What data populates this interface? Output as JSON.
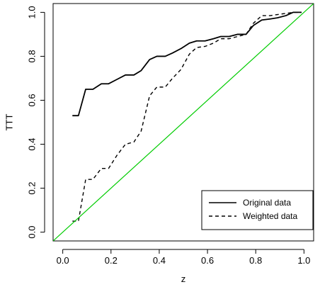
{
  "chart_data": {
    "type": "line",
    "xlabel": "z",
    "ylabel": "TTT",
    "xlim": [
      -0.04,
      1.04
    ],
    "ylim": [
      -0.04,
      1.04
    ],
    "x_ticks": [
      0.0,
      0.2,
      0.4,
      0.6,
      0.8,
      1.0
    ],
    "x_tick_labels": [
      "0.0",
      "0.2",
      "0.4",
      "0.6",
      "0.8",
      "1.0"
    ],
    "y_ticks": [
      0.0,
      0.2,
      0.4,
      0.6,
      0.8,
      1.0
    ],
    "y_tick_labels": [
      "0.0",
      "0.2",
      "0.4",
      "0.6",
      "0.8",
      "1.0"
    ],
    "grid": false,
    "legend_position": "bottom-right",
    "colors": {
      "axis": "#000000",
      "series_original": "#000000",
      "series_weighted": "#000000",
      "reference": "#00cc00"
    },
    "series": [
      {
        "name": "Original data",
        "line_style": "solid",
        "points": [
          [
            0.04,
            0.53
          ],
          [
            0.065,
            0.53
          ],
          [
            0.095,
            0.65
          ],
          [
            0.125,
            0.65
          ],
          [
            0.16,
            0.675
          ],
          [
            0.19,
            0.675
          ],
          [
            0.225,
            0.695
          ],
          [
            0.26,
            0.715
          ],
          [
            0.295,
            0.715
          ],
          [
            0.325,
            0.735
          ],
          [
            0.36,
            0.785
          ],
          [
            0.39,
            0.8
          ],
          [
            0.425,
            0.8
          ],
          [
            0.455,
            0.815
          ],
          [
            0.49,
            0.835
          ],
          [
            0.525,
            0.86
          ],
          [
            0.555,
            0.87
          ],
          [
            0.59,
            0.87
          ],
          [
            0.625,
            0.88
          ],
          [
            0.655,
            0.89
          ],
          [
            0.69,
            0.89
          ],
          [
            0.725,
            0.9
          ],
          [
            0.76,
            0.9
          ],
          [
            0.79,
            0.94
          ],
          [
            0.825,
            0.965
          ],
          [
            0.86,
            0.97
          ],
          [
            0.89,
            0.975
          ],
          [
            0.925,
            0.985
          ],
          [
            0.955,
            1.0
          ],
          [
            0.99,
            1.0
          ]
        ]
      },
      {
        "name": "Weighted data",
        "line_style": "dashed",
        "points": [
          [
            0.04,
            0.05
          ],
          [
            0.065,
            0.05
          ],
          [
            0.095,
            0.24
          ],
          [
            0.125,
            0.24
          ],
          [
            0.16,
            0.29
          ],
          [
            0.19,
            0.29
          ],
          [
            0.225,
            0.35
          ],
          [
            0.26,
            0.4
          ],
          [
            0.295,
            0.41
          ],
          [
            0.325,
            0.46
          ],
          [
            0.36,
            0.62
          ],
          [
            0.39,
            0.66
          ],
          [
            0.425,
            0.66
          ],
          [
            0.455,
            0.7
          ],
          [
            0.49,
            0.74
          ],
          [
            0.525,
            0.81
          ],
          [
            0.555,
            0.84
          ],
          [
            0.59,
            0.845
          ],
          [
            0.625,
            0.86
          ],
          [
            0.655,
            0.88
          ],
          [
            0.69,
            0.88
          ],
          [
            0.725,
            0.89
          ],
          [
            0.76,
            0.9
          ],
          [
            0.79,
            0.95
          ],
          [
            0.825,
            0.985
          ],
          [
            0.86,
            0.985
          ],
          [
            0.89,
            0.99
          ],
          [
            0.925,
            0.995
          ],
          [
            0.955,
            1.0
          ],
          [
            0.99,
            1.0
          ]
        ]
      },
      {
        "line_style": "solid",
        "points": [
          [
            -0.04,
            -0.04
          ],
          [
            1.04,
            1.04
          ]
        ]
      }
    ]
  }
}
